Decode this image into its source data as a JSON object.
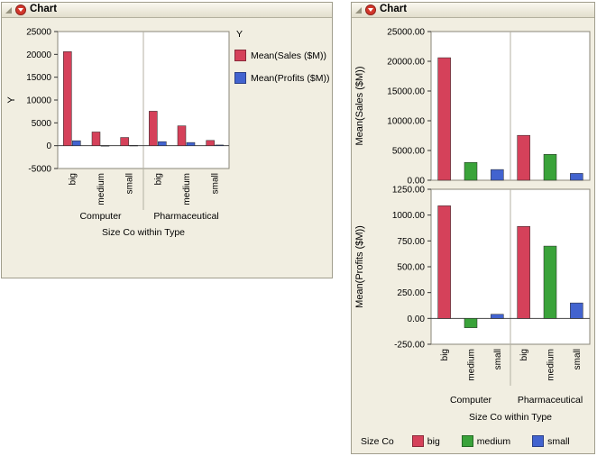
{
  "left_panel": {
    "title": "Chart",
    "legend": {
      "title": "Y",
      "entries": [
        {
          "label": "Mean(Sales ($M))",
          "color": "#d5415a"
        },
        {
          "label": "Mean(Profits ($M))",
          "color": "#4263cf"
        }
      ]
    }
  },
  "right_panel": {
    "title": "Chart",
    "legend": {
      "title": "Size Co",
      "entries": [
        {
          "label": "big",
          "color": "#d5415a"
        },
        {
          "label": "medium",
          "color": "#3aa33a"
        },
        {
          "label": "small",
          "color": "#4263cf"
        }
      ]
    }
  },
  "chart_data": [
    {
      "type": "bar",
      "ylabel": "Y",
      "xlabel": "Size Co within Type",
      "ylim": [
        -5000,
        25000
      ],
      "yticks": [
        -5000,
        0,
        5000,
        10000,
        15000,
        20000,
        25000
      ],
      "ytick_labels": [
        "-5000",
        "0",
        "5000",
        "10000",
        "15000",
        "20000",
        "25000"
      ],
      "groups": [
        {
          "label": "Computer",
          "categories": [
            "big",
            "medium",
            "small"
          ]
        },
        {
          "label": "Pharmaceutical",
          "categories": [
            "big",
            "medium",
            "small"
          ]
        }
      ],
      "legend_title": "Y",
      "legend_position": "right",
      "grid": false,
      "series": [
        {
          "name": "Mean(Sales ($M))",
          "color": "#d5415a",
          "values": [
            20600,
            3000,
            1800,
            7550,
            4350,
            1150
          ]
        },
        {
          "name": "Mean(Profits ($M))",
          "color": "#4263cf",
          "values": [
            1090,
            -90,
            40,
            890,
            700,
            150
          ]
        }
      ]
    },
    {
      "type": "bar",
      "ylabel": "Mean(Sales ($M))",
      "xlabel": "Size Co within Type",
      "ylim": [
        0,
        25000
      ],
      "yticks": [
        0,
        5000,
        10000,
        15000,
        20000,
        25000
      ],
      "ytick_labels": [
        "0.00",
        "5000.00",
        "10000.00",
        "15000.00",
        "20000.00",
        "25000.00"
      ],
      "groups": [
        {
          "label": "Computer",
          "categories": [
            "big",
            "medium",
            "small"
          ]
        },
        {
          "label": "Pharmaceutical",
          "categories": [
            "big",
            "medium",
            "small"
          ]
        }
      ],
      "legend_title": "Size Co",
      "legend_position": "bottom",
      "grid": false,
      "series": [
        {
          "name": "Size Co",
          "colors": [
            "#d5415a",
            "#3aa33a",
            "#4263cf",
            "#d5415a",
            "#3aa33a",
            "#4263cf"
          ],
          "values": [
            20600,
            3000,
            1800,
            7550,
            4350,
            1150
          ]
        }
      ]
    },
    {
      "type": "bar",
      "ylabel": "Mean(Profits ($M))",
      "xlabel": "Size Co within Type",
      "ylim": [
        -250,
        1250
      ],
      "yticks": [
        -250,
        0,
        250,
        500,
        750,
        1000,
        1250
      ],
      "ytick_labels": [
        "-250.00",
        "0.00",
        "250.00",
        "500.00",
        "750.00",
        "1000.00",
        "1250.00"
      ],
      "groups": [
        {
          "label": "Computer",
          "categories": [
            "big",
            "medium",
            "small"
          ]
        },
        {
          "label": "Pharmaceutical",
          "categories": [
            "big",
            "medium",
            "small"
          ]
        }
      ],
      "legend_title": "Size Co",
      "legend_position": "bottom",
      "grid": false,
      "series": [
        {
          "name": "Size Co",
          "colors": [
            "#d5415a",
            "#3aa33a",
            "#4263cf",
            "#d5415a",
            "#3aa33a",
            "#4263cf"
          ],
          "values": [
            1090,
            -90,
            40,
            890,
            700,
            150
          ]
        }
      ]
    }
  ]
}
